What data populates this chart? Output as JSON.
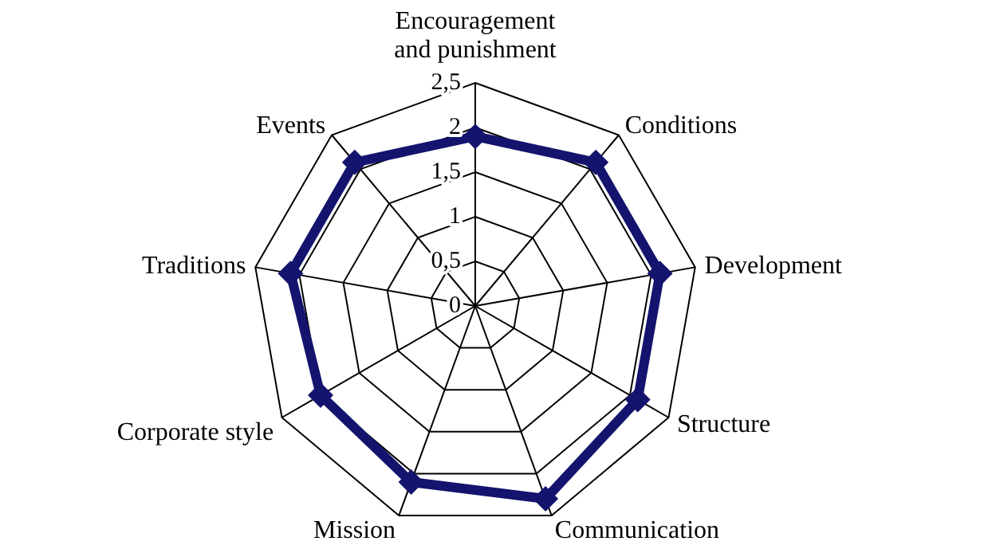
{
  "chart_data": {
    "type": "radar",
    "categories": [
      "Encouragement and punishment",
      "Conditions",
      "Development",
      "Structure",
      "Communication",
      "Mission",
      "Corporate style",
      "Traditions",
      "Events"
    ],
    "series": [
      {
        "color": "#14146e",
        "values": [
          1.9,
          2.1,
          2.1,
          2.1,
          2.3,
          2.1,
          2.0,
          2.1,
          2.1
        ]
      }
    ],
    "ylim": [
      0,
      2.5
    ],
    "yticks": [
      0,
      {
        "value": 0.5,
        "label": "0,5"
      },
      1,
      {
        "value": 1.5,
        "label": "1,5"
      },
      2,
      {
        "value": 2.5,
        "label": "2,5"
      }
    ],
    "grid": true,
    "marker": "diamond",
    "line_style": "solid"
  }
}
